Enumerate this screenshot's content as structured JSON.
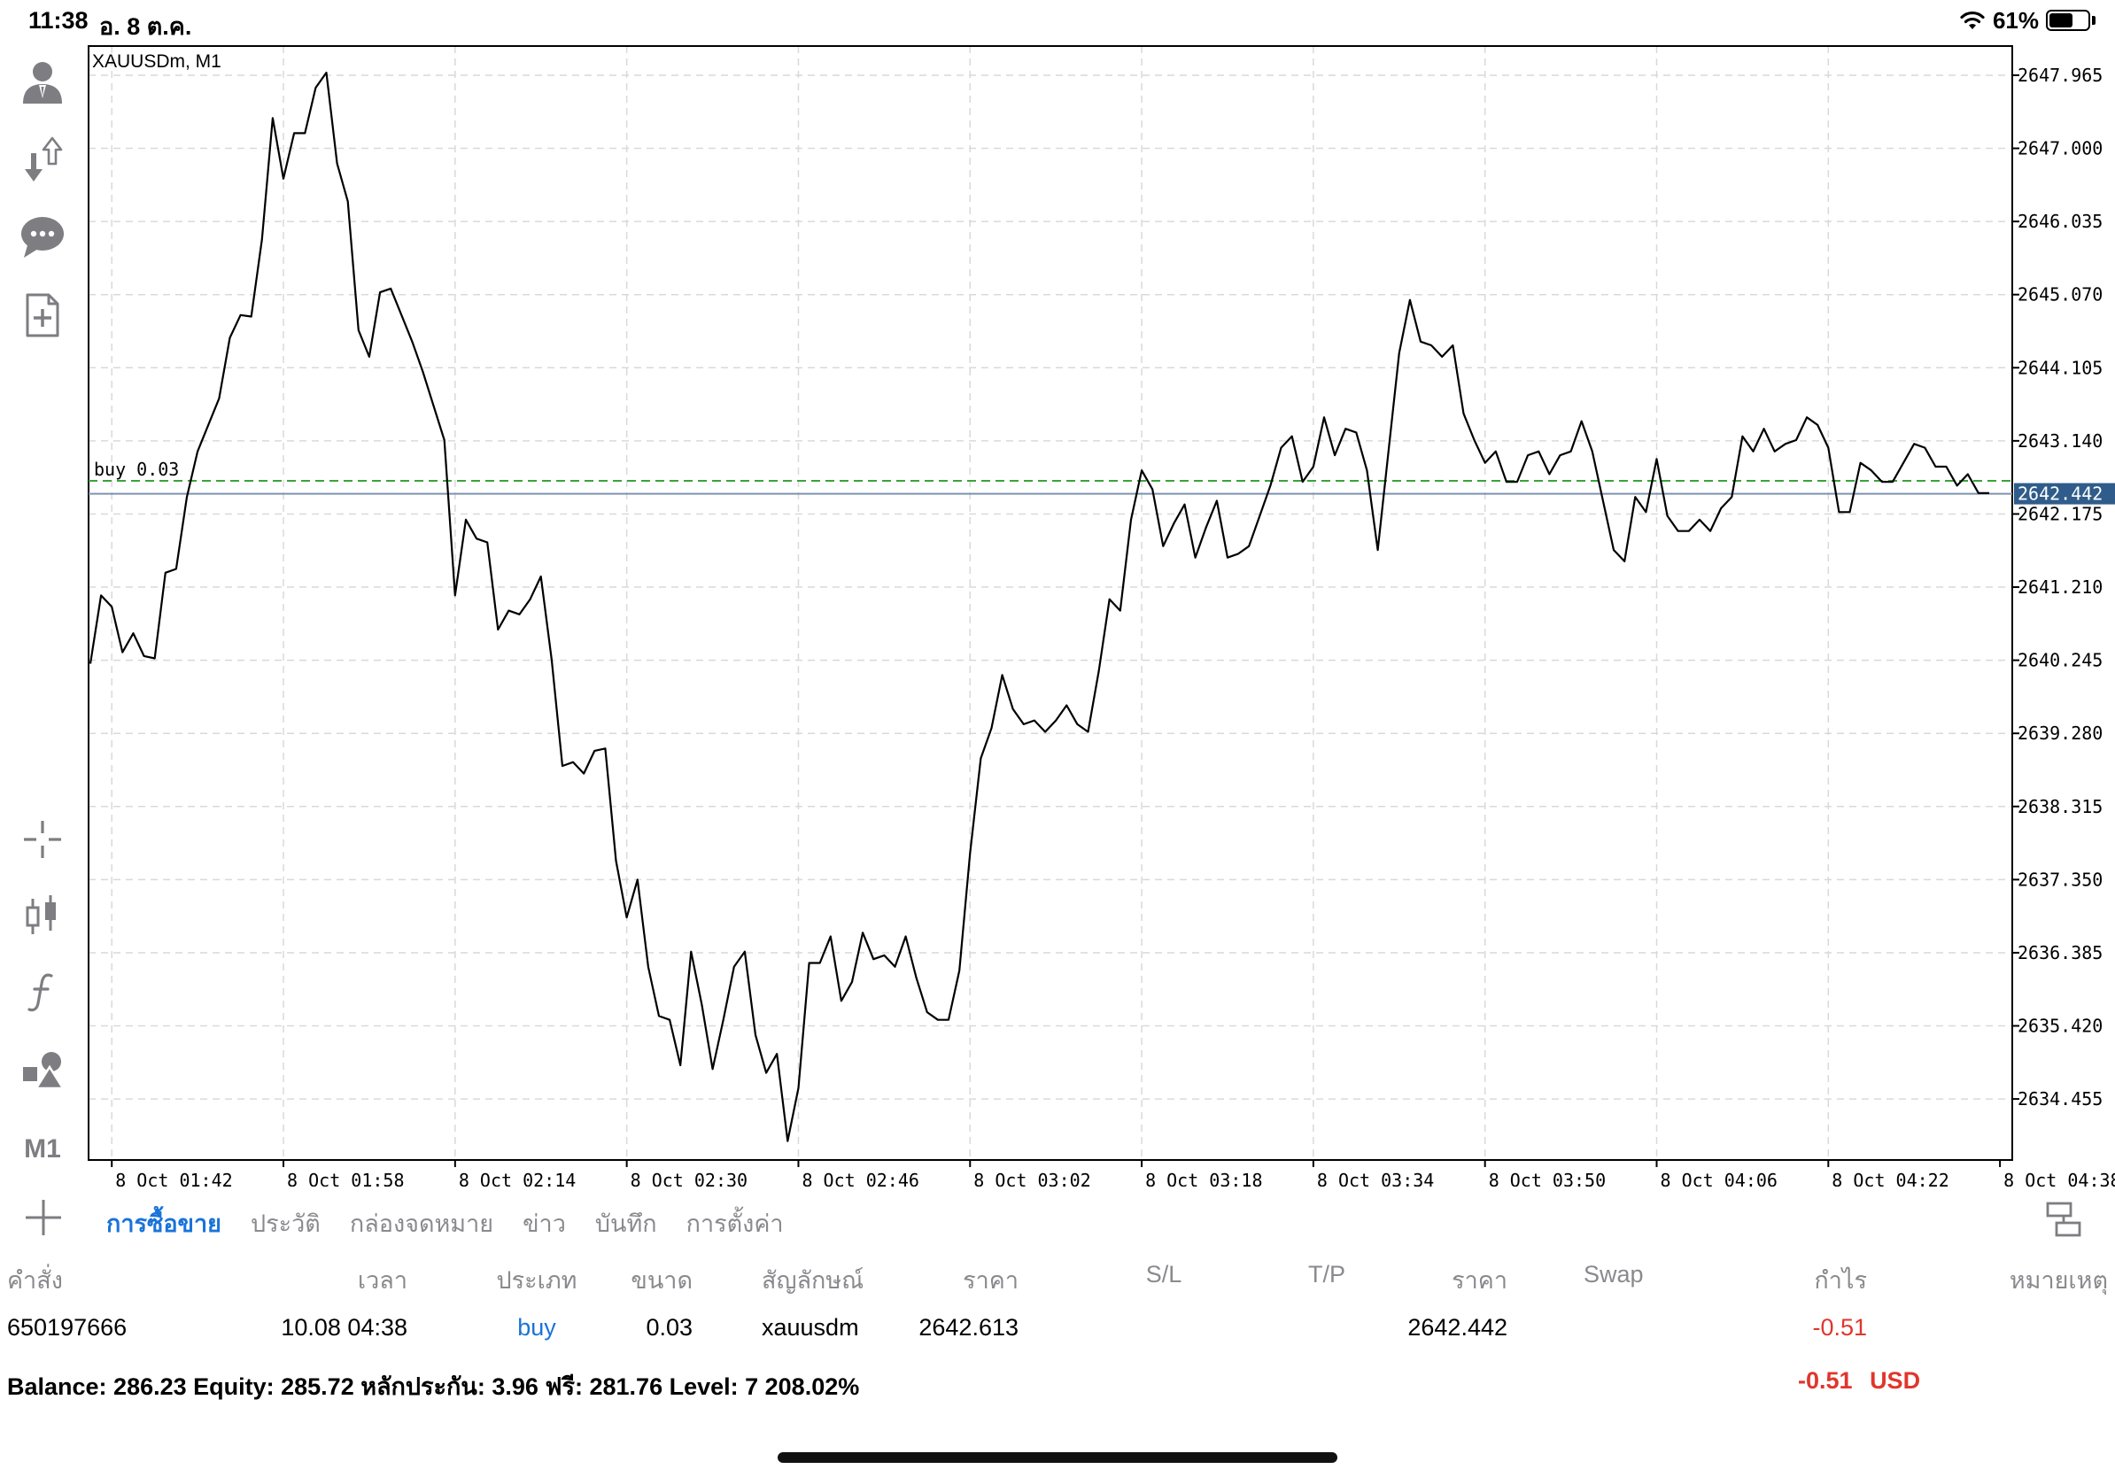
{
  "status_bar": {
    "time": "11:38",
    "date": "อ. 8 ต.ค.",
    "battery": "61%",
    "battery_level": 0.61
  },
  "toolbar": {
    "icons": [
      "account-icon",
      "trade-arrows-icon",
      "chat-icon",
      "new-order-icon",
      "crosshair-icon",
      "candlestick-icon",
      "indicator-f-icon",
      "objects-icon"
    ],
    "timeframe": "M1"
  },
  "chart_data": {
    "type": "line",
    "symbol_label": "XAUUSDm, M1",
    "order_line_label": "buy 0.03",
    "order_price": 2642.613,
    "current_price": 2642.442,
    "current_price_label": "2642.442",
    "ylim": [
      2633.65,
      2648.35
    ],
    "y_ticks": [
      "2647.965",
      "2647.000",
      "2646.035",
      "2645.070",
      "2644.105",
      "2643.140",
      "2642.175",
      "2641.210",
      "2640.245",
      "2639.280",
      "2638.315",
      "2637.350",
      "2636.385",
      "2635.420",
      "2634.455"
    ],
    "x_ticks": [
      "8 Oct 01:42",
      "8 Oct 01:58",
      "8 Oct 02:14",
      "8 Oct 02:30",
      "8 Oct 02:46",
      "8 Oct 03:02",
      "8 Oct 03:18",
      "8 Oct 03:34",
      "8 Oct 03:50",
      "8 Oct 04:06",
      "8 Oct 04:22",
      "8 Oct 04:38"
    ],
    "x_start": "8 Oct 01:40",
    "x_end": "8 Oct 04:38",
    "series": [
      {
        "values": [
          2640.2,
          2641.1,
          2640.95,
          2640.35,
          2640.6,
          2640.3,
          2640.27,
          2641.4,
          2641.45,
          2642.4,
          2643.0,
          2643.35,
          2643.7,
          2644.5,
          2644.8,
          2644.78,
          2645.8,
          2647.4,
          2646.6,
          2647.2,
          2647.2,
          2647.8,
          2648.0,
          2646.8,
          2646.3,
          2644.6,
          2644.25,
          2645.1,
          2645.15,
          2644.8,
          2644.45,
          2644.05,
          2643.6,
          2643.15,
          2641.1,
          2642.1,
          2641.85,
          2641.8,
          2640.65,
          2640.9,
          2640.85,
          2641.05,
          2641.35,
          2640.25,
          2638.85,
          2638.9,
          2638.75,
          2639.05,
          2639.08,
          2637.6,
          2636.85,
          2637.35,
          2636.2,
          2635.55,
          2635.5,
          2634.9,
          2636.4,
          2635.7,
          2634.85,
          2635.5,
          2636.2,
          2636.4,
          2635.3,
          2634.8,
          2635.05,
          2633.9,
          2634.6,
          2636.25,
          2636.25,
          2636.6,
          2635.75,
          2636.0,
          2636.65,
          2636.3,
          2636.35,
          2636.2,
          2636.6,
          2636.05,
          2635.6,
          2635.5,
          2635.5,
          2636.15,
          2637.7,
          2638.95,
          2639.35,
          2640.05,
          2639.6,
          2639.4,
          2639.45,
          2639.3,
          2639.45,
          2639.65,
          2639.4,
          2639.3,
          2640.1,
          2641.05,
          2640.9,
          2642.1,
          2642.75,
          2642.5,
          2641.75,
          2642.05,
          2642.3,
          2641.6,
          2642.0,
          2642.35,
          2641.6,
          2641.65,
          2641.75,
          2642.15,
          2642.55,
          2643.05,
          2643.2,
          2642.6,
          2642.8,
          2643.45,
          2642.95,
          2643.3,
          2643.25,
          2642.75,
          2641.7,
          2643.0,
          2644.3,
          2645.0,
          2644.45,
          2644.4,
          2644.25,
          2644.4,
          2643.5,
          2643.15,
          2642.85,
          2643.0,
          2642.6,
          2642.6,
          2642.95,
          2643.0,
          2642.7,
          2642.95,
          2643.0,
          2643.4,
          2643.0,
          2642.35,
          2641.7,
          2641.55,
          2642.4,
          2642.2,
          2642.9,
          2642.15,
          2641.95,
          2641.95,
          2642.1,
          2641.95,
          2642.25,
          2642.4,
          2643.2,
          2643.0,
          2643.3,
          2643.0,
          2643.1,
          2643.15,
          2643.45,
          2643.35,
          2643.05,
          2642.2,
          2642.2,
          2642.85,
          2642.75,
          2642.6,
          2642.6,
          2642.85,
          2643.1,
          2643.05,
          2642.8,
          2642.8,
          2642.55,
          2642.7,
          2642.45,
          2642.45
        ]
      }
    ]
  },
  "tabs": [
    "การซื้อขาย",
    "ประวัติ",
    "กล่องจดหมาย",
    "ข่าว",
    "บันทึก",
    "การตั้งค่า"
  ],
  "active_tab_index": 0,
  "table": {
    "headers": [
      "คำสั่ง",
      "เวลา",
      "ประเภท",
      "ขนาด",
      "สัญลักษณ์",
      "ราคา",
      "S/L",
      "T/P",
      "ราคา",
      "Swap",
      "กำไร",
      "หมายเหตุ"
    ],
    "row": {
      "order": "650197666",
      "time": "10.08 04:38",
      "type": "buy",
      "size": "0.03",
      "symbol": "xauusdm",
      "open_price": "2642.613",
      "sl": "",
      "tp": "",
      "price": "2642.442",
      "swap": "",
      "profit": "-0.51",
      "comment": ""
    }
  },
  "summary": {
    "text": "Balance: 286.23 Equity: 285.72 หลักประกัน: 3.96 ฟรี: 281.76 Level: 7 208.02%",
    "profit": "-0.51",
    "currency": "USD"
  },
  "colors": {
    "accent": "#1a73d9",
    "loss": "#e0362d",
    "price_label_bg": "#2f5c8a",
    "order_line": "#3aa33a",
    "price_line": "#7d93ad",
    "grid": "#d9d9d9"
  }
}
